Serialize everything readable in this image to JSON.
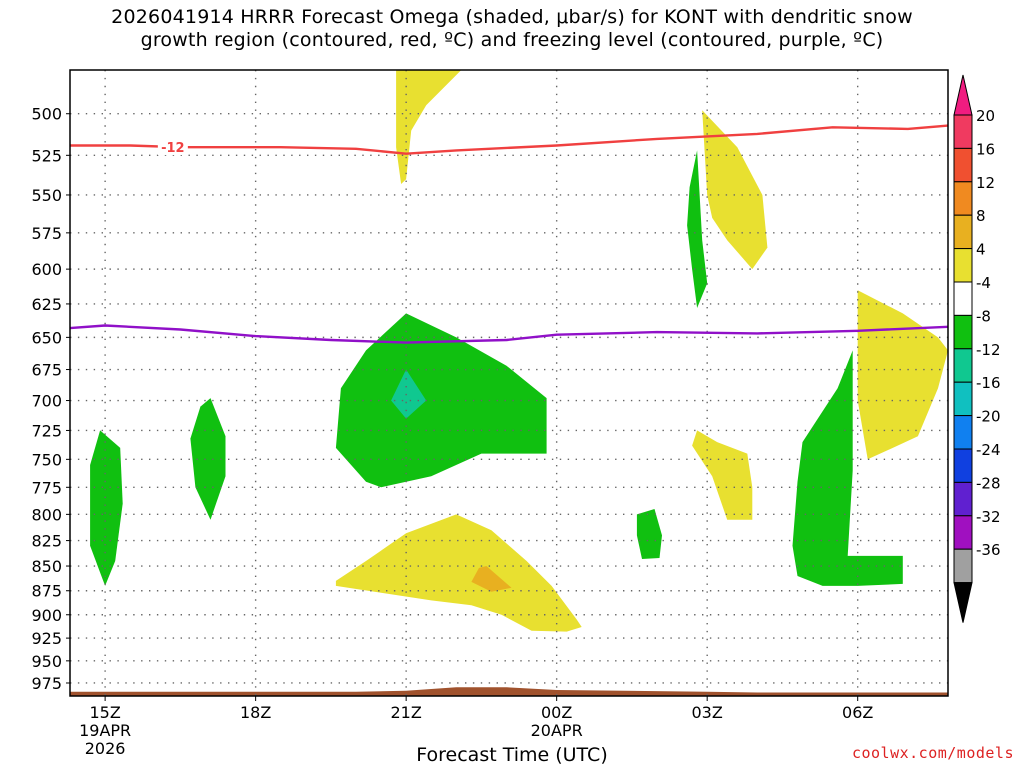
{
  "title_lines": [
    "2026041914 HRRR Forecast Omega (shaded, μbar/s) for KONT with dendritic snow",
    "growth region (contoured, red, ºC) and freezing level (contoured, purple, ºC)"
  ],
  "credit": "coolwx.com/models",
  "colors": {
    "dgz_line": "#f04040",
    "freezing_line": "#9010c8",
    "terrain": "#a0522d"
  },
  "chart_data": {
    "type": "heatmap",
    "title": "2026041914 HRRR Forecast Omega (shaded, μbar/s) for KONT with dendritic snow growth region (contoured, red, ºC) and freezing level (contoured, purple, ºC)",
    "xlabel": "Forecast Time (UTC)",
    "ylabel": "",
    "x_range_hours": [
      -0.7,
      16.8
    ],
    "y_range_hpa": [
      990,
      475
    ],
    "y_scale": "log-pressure (inverted)",
    "grid": true,
    "x_ticks": [
      {
        "hour": 0,
        "label": "15Z",
        "sub": [
          "19APR",
          "2026"
        ]
      },
      {
        "hour": 3,
        "label": "18Z",
        "sub": []
      },
      {
        "hour": 6,
        "label": "21Z",
        "sub": []
      },
      {
        "hour": 9,
        "label": "00Z",
        "sub": [
          "20APR"
        ]
      },
      {
        "hour": 12,
        "label": "03Z",
        "sub": []
      },
      {
        "hour": 15,
        "label": "06Z",
        "sub": []
      }
    ],
    "y_ticks": [
      "500",
      "525",
      "550",
      "575",
      "600",
      "625",
      "650",
      "675",
      "700",
      "725",
      "750",
      "775",
      "800",
      "825",
      "850",
      "875",
      "900",
      "925",
      "950",
      "975"
    ],
    "colorbar": {
      "labels": [
        "20",
        "16",
        "12",
        "8",
        "4",
        "-4",
        "-8",
        "-12",
        "-16",
        "-20",
        "-24",
        "-28",
        "-32",
        "-36"
      ],
      "colors": [
        "#f03a60",
        "#f05030",
        "#f08a20",
        "#e8b020",
        "#e8e030",
        "#ffffff",
        "#10c010",
        "#10c890",
        "#10c0c0",
        "#1080f0",
        "#1040e0",
        "#6020d0",
        "#a010c0",
        "#a0a0a0"
      ]
    },
    "dgz_contour": {
      "label": "-12",
      "points": [
        [
          -0.7,
          519
        ],
        [
          0.5,
          519
        ],
        [
          1.5,
          520
        ],
        [
          3.5,
          520
        ],
        [
          5,
          521
        ],
        [
          6,
          524
        ],
        [
          7,
          522
        ],
        [
          9,
          519
        ],
        [
          11,
          515
        ],
        [
          13,
          512
        ],
        [
          14.5,
          508
        ],
        [
          16,
          509
        ],
        [
          16.8,
          507
        ]
      ]
    },
    "freezing_contour": {
      "points": [
        [
          -0.7,
          643
        ],
        [
          0,
          641
        ],
        [
          1.5,
          644
        ],
        [
          3,
          649
        ],
        [
          4.5,
          652
        ],
        [
          6,
          654
        ],
        [
          8,
          652
        ],
        [
          9,
          648
        ],
        [
          11,
          646
        ],
        [
          13,
          647
        ],
        [
          15,
          645
        ],
        [
          16.8,
          642
        ]
      ]
    },
    "shaded_regions": [
      {
        "value": 6,
        "points": [
          [
            5.8,
            475
          ],
          [
            7.1,
            475
          ],
          [
            6.4,
            495
          ],
          [
            6.1,
            510
          ],
          [
            6,
            540
          ],
          [
            5.9,
            543
          ],
          [
            5.8,
            520
          ]
        ]
      },
      {
        "value": 6,
        "points": [
          [
            11.9,
            498
          ],
          [
            12.6,
            520
          ],
          [
            13.1,
            550
          ],
          [
            13.2,
            585
          ],
          [
            12.9,
            600
          ],
          [
            12.4,
            580
          ],
          [
            12.1,
            565
          ],
          [
            12,
            550
          ]
        ]
      },
      {
        "value": 6,
        "points": [
          [
            15,
            615
          ],
          [
            15.9,
            632
          ],
          [
            16.6,
            650
          ],
          [
            16.8,
            660
          ],
          [
            16.6,
            690
          ],
          [
            16.2,
            730
          ],
          [
            15.7,
            740
          ],
          [
            15.2,
            750
          ],
          [
            15,
            700
          ],
          [
            15,
            640
          ]
        ]
      },
      {
        "value": 6,
        "points": [
          [
            11.8,
            725
          ],
          [
            12.2,
            735
          ],
          [
            12.8,
            745
          ],
          [
            12.9,
            775
          ],
          [
            12.9,
            805
          ],
          [
            12.4,
            805
          ],
          [
            12.1,
            765
          ],
          [
            11.7,
            738
          ]
        ]
      },
      {
        "value": 6,
        "points": [
          [
            4.6,
            865
          ],
          [
            5.2,
            845
          ],
          [
            6,
            818
          ],
          [
            7,
            800
          ],
          [
            7.7,
            815
          ],
          [
            8.4,
            845
          ],
          [
            8.9,
            870
          ],
          [
            9.4,
            905
          ],
          [
            9.5,
            913
          ],
          [
            9.2,
            918
          ],
          [
            8.5,
            917
          ],
          [
            7.9,
            900
          ],
          [
            7.3,
            890
          ],
          [
            6.5,
            885
          ],
          [
            5.5,
            877
          ],
          [
            4.6,
            870
          ]
        ]
      },
      {
        "value": 10,
        "points": [
          [
            7.6,
            850
          ],
          [
            8.1,
            872
          ],
          [
            7.7,
            876
          ],
          [
            7.3,
            866
          ],
          [
            7.45,
            852
          ]
        ]
      },
      {
        "value": -6,
        "points": [
          [
            -0.3,
            755
          ],
          [
            -0.1,
            725
          ],
          [
            0.3,
            740
          ],
          [
            0.35,
            790
          ],
          [
            0.2,
            845
          ],
          [
            0,
            870
          ],
          [
            -0.3,
            830
          ]
        ]
      },
      {
        "value": -6,
        "points": [
          [
            1.9,
            705
          ],
          [
            2.1,
            698
          ],
          [
            2.4,
            730
          ],
          [
            2.4,
            765
          ],
          [
            2.1,
            805
          ],
          [
            1.8,
            775
          ],
          [
            1.7,
            732
          ]
        ]
      },
      {
        "value": -6,
        "points": [
          [
            4.7,
            690
          ],
          [
            5.2,
            660
          ],
          [
            6,
            632
          ],
          [
            7,
            650
          ],
          [
            8,
            672
          ],
          [
            8.8,
            698
          ],
          [
            8.8,
            745
          ],
          [
            7.5,
            745
          ],
          [
            6.5,
            765
          ],
          [
            5.5,
            775
          ],
          [
            5.2,
            770
          ],
          [
            4.6,
            740
          ]
        ]
      },
      {
        "value": -10,
        "points": [
          [
            6,
            675
          ],
          [
            6.4,
            700
          ],
          [
            6,
            715
          ],
          [
            5.7,
            700
          ]
        ]
      },
      {
        "value": -6,
        "points": [
          [
            11.8,
            522
          ],
          [
            11.9,
            580
          ],
          [
            12,
            610
          ],
          [
            11.8,
            628
          ],
          [
            11.7,
            600
          ],
          [
            11.6,
            570
          ],
          [
            11.65,
            545
          ]
        ]
      },
      {
        "value": -6,
        "points": [
          [
            10.6,
            800
          ],
          [
            10.95,
            795
          ],
          [
            11.1,
            820
          ],
          [
            11.05,
            842
          ],
          [
            10.7,
            843
          ],
          [
            10.6,
            820
          ]
        ]
      },
      {
        "value": -6,
        "points": [
          [
            13.9,
            735
          ],
          [
            14.6,
            690
          ],
          [
            14.9,
            660
          ],
          [
            14.9,
            760
          ],
          [
            14.8,
            840
          ],
          [
            15.9,
            840
          ],
          [
            15.9,
            868
          ],
          [
            15,
            870
          ],
          [
            14.3,
            870
          ],
          [
            13.8,
            860
          ],
          [
            13.7,
            830
          ],
          [
            13.8,
            770
          ]
        ]
      }
    ],
    "terrain": {
      "base_hpa": 990,
      "points": [
        [
          -0.7,
          985
        ],
        [
          5,
          985
        ],
        [
          6,
          984
        ],
        [
          7,
          980
        ],
        [
          8,
          980
        ],
        [
          9,
          983
        ],
        [
          12,
          985
        ],
        [
          13,
          986
        ],
        [
          16.8,
          986
        ]
      ]
    }
  }
}
